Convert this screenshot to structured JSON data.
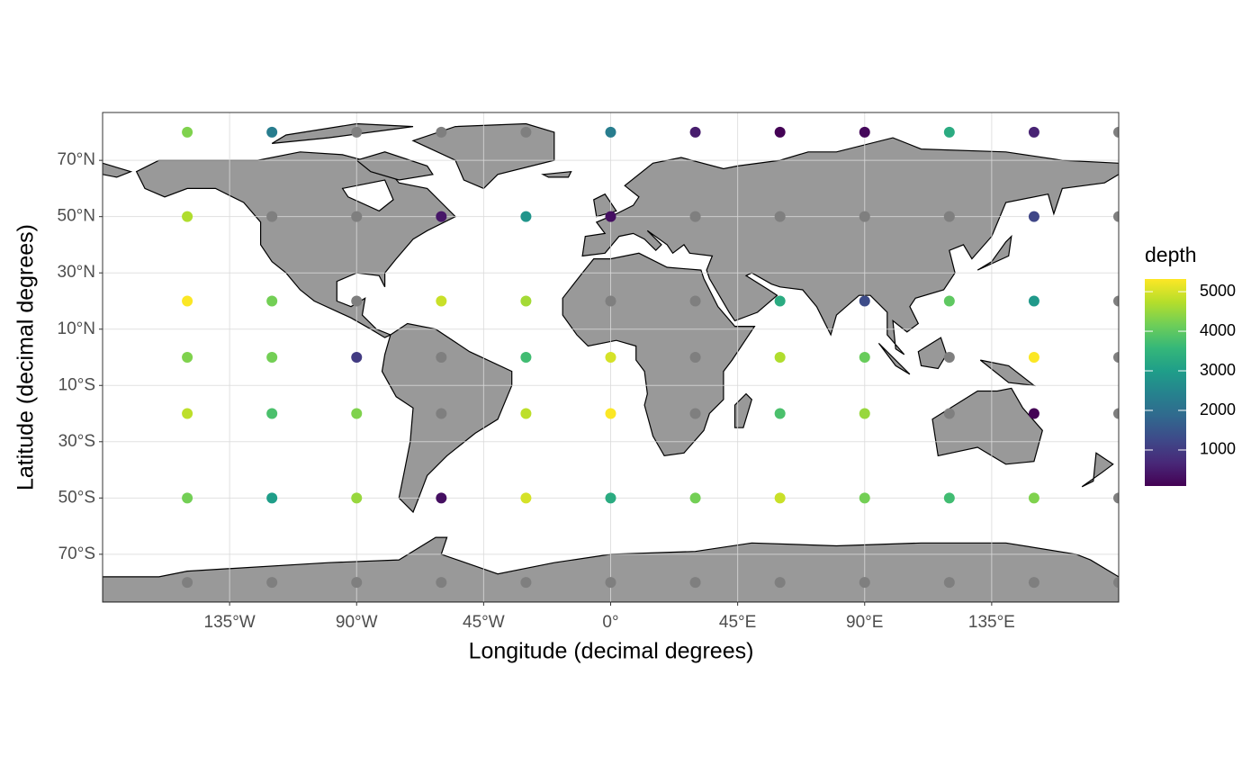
{
  "chart_data": {
    "type": "scatter",
    "xlabel": "Longitude (decimal degrees)",
    "ylabel": "Latitude (decimal degrees)",
    "legend_title": "depth",
    "x": [
      -150,
      -120,
      -90,
      -60,
      -30,
      0,
      30,
      60,
      90,
      120,
      150,
      180,
      -150,
      -120,
      -90,
      -60,
      -30,
      0,
      30,
      60,
      90,
      120,
      150,
      180,
      -150,
      -120,
      -90,
      -60,
      -30,
      0,
      30,
      60,
      90,
      120,
      150,
      180,
      -150,
      -120,
      -90,
      -60,
      -30,
      0,
      30,
      60,
      90,
      120,
      150,
      180,
      -150,
      -120,
      -90,
      -60,
      -30,
      0,
      30,
      60,
      90,
      120,
      150,
      180,
      -150,
      -120,
      -90,
      -60,
      -30,
      0,
      30,
      60,
      90,
      120,
      150,
      180,
      -150,
      -120,
      -90,
      -60,
      -30,
      0,
      30,
      60,
      90,
      120,
      150,
      180
    ],
    "y": [
      80,
      80,
      80,
      80,
      80,
      80,
      80,
      80,
      80,
      80,
      80,
      80,
      50,
      50,
      50,
      50,
      50,
      50,
      50,
      50,
      50,
      50,
      50,
      50,
      20,
      20,
      20,
      20,
      20,
      20,
      20,
      20,
      20,
      20,
      20,
      20,
      0,
      0,
      0,
      0,
      0,
      0,
      0,
      0,
      0,
      0,
      0,
      0,
      -20,
      -20,
      -20,
      -20,
      -20,
      -20,
      -20,
      -20,
      -20,
      -20,
      -20,
      -20,
      -50,
      -50,
      -50,
      -50,
      -50,
      -50,
      -50,
      -50,
      -50,
      -50,
      -50,
      -50,
      -80,
      -80,
      -80,
      -80,
      -80,
      -80,
      -80,
      -80,
      -80,
      -80,
      -80,
      -80
    ],
    "values": [
      4300,
      2300,
      null,
      null,
      null,
      2300,
      500,
      100,
      200,
      3300,
      600,
      null,
      4700,
      null,
      null,
      400,
      2800,
      300,
      null,
      null,
      null,
      null,
      1200,
      null,
      5300,
      4200,
      null,
      4900,
      4600,
      null,
      null,
      3300,
      1300,
      4000,
      2900,
      null,
      4300,
      4200,
      1000,
      null,
      3700,
      5000,
      null,
      4700,
      4100,
      null,
      5300,
      null,
      4800,
      3800,
      4300,
      null,
      4800,
      5300,
      null,
      3800,
      4500,
      null,
      100,
      null,
      4200,
      3000,
      4500,
      300,
      5000,
      3300,
      4200,
      4900,
      4200,
      3700,
      4300,
      null,
      null,
      null,
      null,
      null,
      null,
      null,
      null,
      null,
      null,
      null,
      null,
      null
    ],
    "xlim": [
      -180,
      180
    ],
    "ylim": [
      -87,
      87
    ],
    "xticks": [
      {
        "value": -135,
        "label": "135°W"
      },
      {
        "value": -90,
        "label": "90°W"
      },
      {
        "value": -45,
        "label": "45°W"
      },
      {
        "value": 0,
        "label": "0°"
      },
      {
        "value": 45,
        "label": "45°E"
      },
      {
        "value": 90,
        "label": "90°E"
      },
      {
        "value": 135,
        "label": "135°E"
      }
    ],
    "yticks": [
      {
        "value": -70,
        "label": "70°S"
      },
      {
        "value": -50,
        "label": "50°S"
      },
      {
        "value": -30,
        "label": "30°S"
      },
      {
        "value": -10,
        "label": "10°S"
      },
      {
        "value": 10,
        "label": "10°N"
      },
      {
        "value": 30,
        "label": "30°N"
      },
      {
        "value": 50,
        "label": "50°N"
      },
      {
        "value": 70,
        "label": "70°N"
      }
    ],
    "clim": [
      90,
      5320
    ],
    "cticks": [
      1000,
      2000,
      3000,
      4000,
      5000
    ],
    "palette": [
      "#440154",
      "#482878",
      "#3e4989",
      "#31688e",
      "#26828e",
      "#1f9e89",
      "#35b779",
      "#6ece58",
      "#b5de2b",
      "#fde725"
    ],
    "na_color": "#7f7f7f",
    "land_color": "#999999",
    "grid": true
  }
}
